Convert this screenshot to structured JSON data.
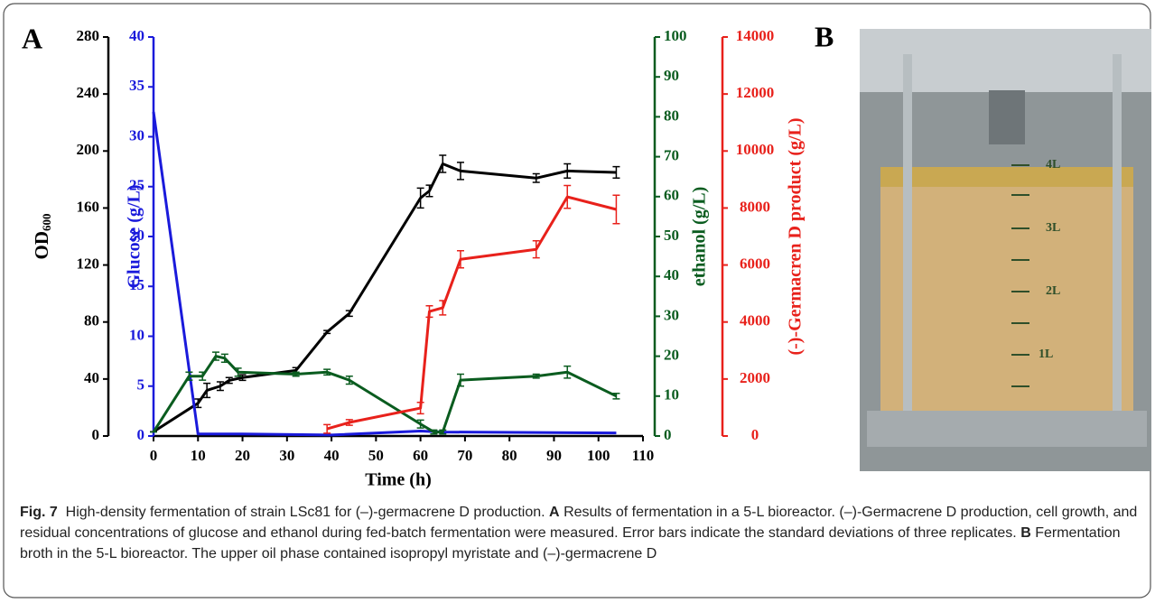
{
  "panel_a": "A",
  "panel_b": "B",
  "chart_data": {
    "type": "line",
    "xlabel": "Time (h)",
    "xlim": [
      0,
      110
    ],
    "xticks": [
      0,
      10,
      20,
      30,
      40,
      50,
      60,
      70,
      80,
      90,
      100,
      110
    ],
    "ylabel": "OD",
    "ylabel_sub": "600",
    "ylim": [
      0,
      280
    ],
    "yticks": [
      0,
      40,
      80,
      120,
      160,
      200,
      240,
      280
    ],
    "y2label": "Glucose (g/L)",
    "y2lim": [
      0,
      40
    ],
    "y2ticks": [
      0,
      5,
      10,
      15,
      20,
      25,
      30,
      35,
      40
    ],
    "y3label": "ethanol (g/L)",
    "y3lim": [
      0,
      100
    ],
    "y3ticks": [
      0,
      10,
      20,
      30,
      40,
      50,
      60,
      70,
      80,
      90,
      100
    ],
    "y4label": "(-)-Germacren D product (g/L)",
    "y4lim": [
      0,
      14000
    ],
    "y4ticks": [
      0,
      2000,
      4000,
      6000,
      8000,
      10000,
      12000,
      14000
    ],
    "series": [
      {
        "axis": "y",
        "color": "#000000",
        "x": [
          0,
          10,
          12,
          15,
          17,
          20,
          32,
          39,
          44,
          60,
          62,
          65,
          69,
          86,
          93,
          104
        ],
        "values": [
          3,
          23,
          32,
          35,
          39,
          41,
          46,
          73,
          86,
          167,
          172,
          191,
          186,
          181,
          186,
          185
        ],
        "errors": [
          0,
          3,
          5,
          3,
          2,
          2,
          2,
          1,
          2,
          7,
          4,
          6,
          6,
          3,
          5,
          4
        ]
      },
      {
        "axis": "y2",
        "color": "#1a1adb",
        "x": [
          0,
          10,
          20,
          40,
          60,
          65,
          104
        ],
        "values": [
          32.5,
          0.2,
          0.2,
          0.1,
          0.5,
          0.4,
          0.3
        ]
      },
      {
        "axis": "y3",
        "color": "#0a5c1f",
        "x": [
          0,
          8,
          11,
          14,
          16,
          19,
          32,
          39,
          44,
          60,
          63,
          65,
          69,
          86,
          93,
          104
        ],
        "values": [
          1,
          15,
          15,
          20,
          19.5,
          16,
          15.5,
          16,
          14,
          3,
          1,
          1,
          14,
          15,
          16,
          10
        ],
        "errors": [
          0,
          1,
          1,
          1,
          1,
          1,
          0.5,
          0.7,
          1,
          1,
          0.5,
          0.5,
          1.5,
          0.5,
          1.5,
          0.7
        ]
      },
      {
        "axis": "y4",
        "color": "#e8211b",
        "x": [
          39,
          44,
          60,
          62,
          65,
          69,
          86,
          93,
          104
        ],
        "values": [
          250,
          475,
          980,
          4370,
          4500,
          6200,
          6550,
          8390,
          7950
        ],
        "errors": [
          150,
          100,
          200,
          200,
          250,
          300,
          300,
          400,
          500
        ]
      }
    ]
  },
  "photo_labels": [
    "4L",
    "3L",
    "2L",
    "1L"
  ],
  "caption": {
    "label": "Fig. 7",
    "title": "High-density fermentation of strain LSc81 for (–)-germacrene D production.",
    "panel_a": "A",
    "text_a": "Results of fermentation in a 5-L bioreactor. (–)-Germacrene D production, cell growth, and residual concentrations of glucose and ethanol during fed-batch fermentation were measured. Error bars indicate the standard deviations of three replicates.",
    "panel_b": "B",
    "text_b": "Fermentation broth in the 5-L bioreactor. The upper oil phase contained isopropyl myristate and (–)-germacrene D"
  }
}
